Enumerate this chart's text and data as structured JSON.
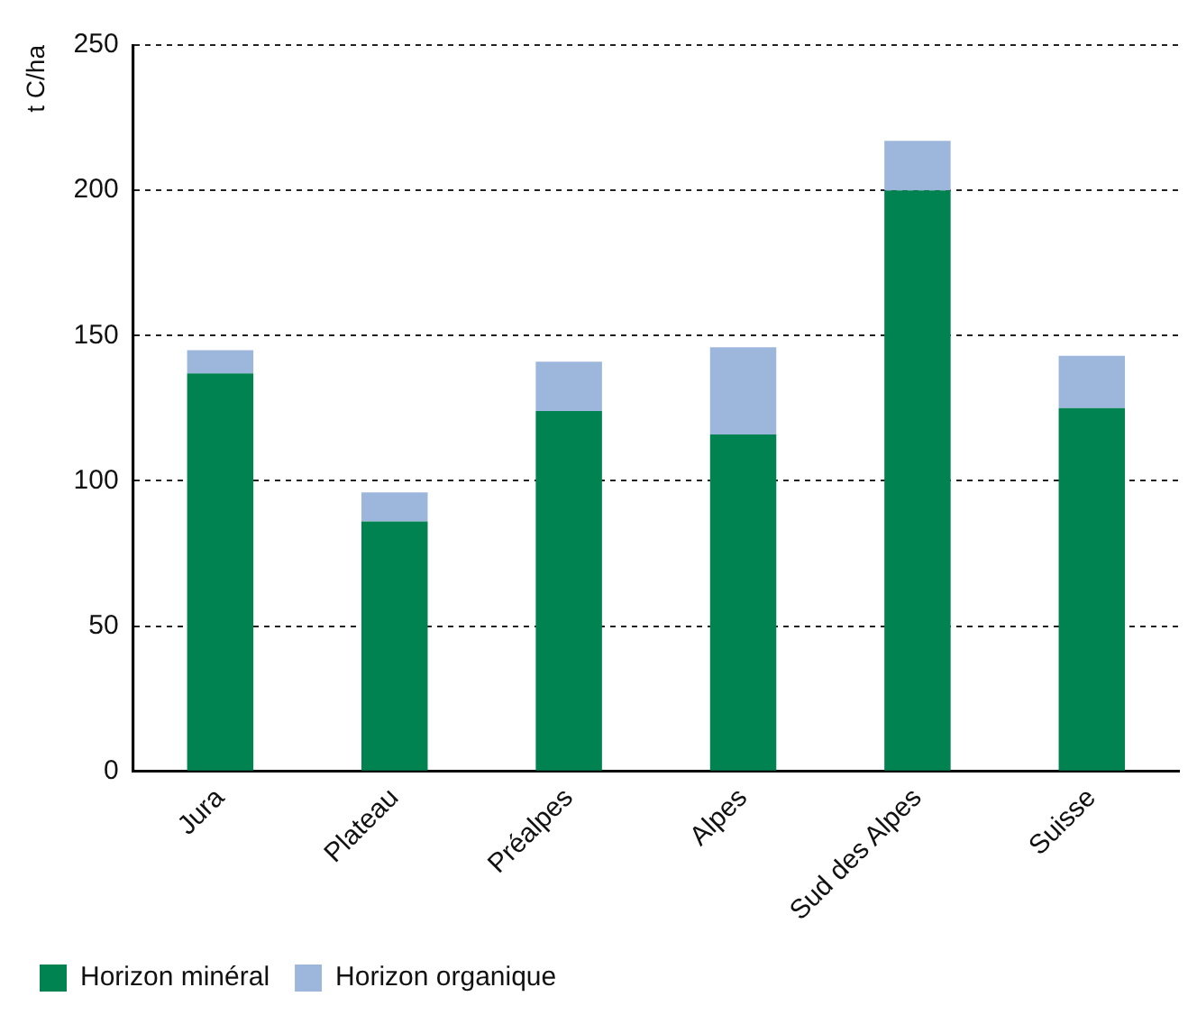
{
  "chart_data": {
    "type": "bar",
    "ylabel": "t C/ha",
    "stacked": true,
    "categories": [
      "Jura",
      "Plateau",
      "Préalpes",
      "Alpes",
      "Sud des Alpes",
      "Suisse"
    ],
    "series": [
      {
        "name": "Horizon minéral",
        "color": "#008350",
        "values": [
          137,
          86,
          124,
          116,
          200,
          125
        ]
      },
      {
        "name": "Horizon organique",
        "color": "#9cb6dc",
        "values": [
          8,
          10,
          17,
          30,
          17,
          18
        ]
      }
    ],
    "ylim": [
      0,
      250
    ],
    "yticks": [
      0,
      50,
      100,
      150,
      200,
      250
    ],
    "grid": "y",
    "legend": "bottom left"
  }
}
